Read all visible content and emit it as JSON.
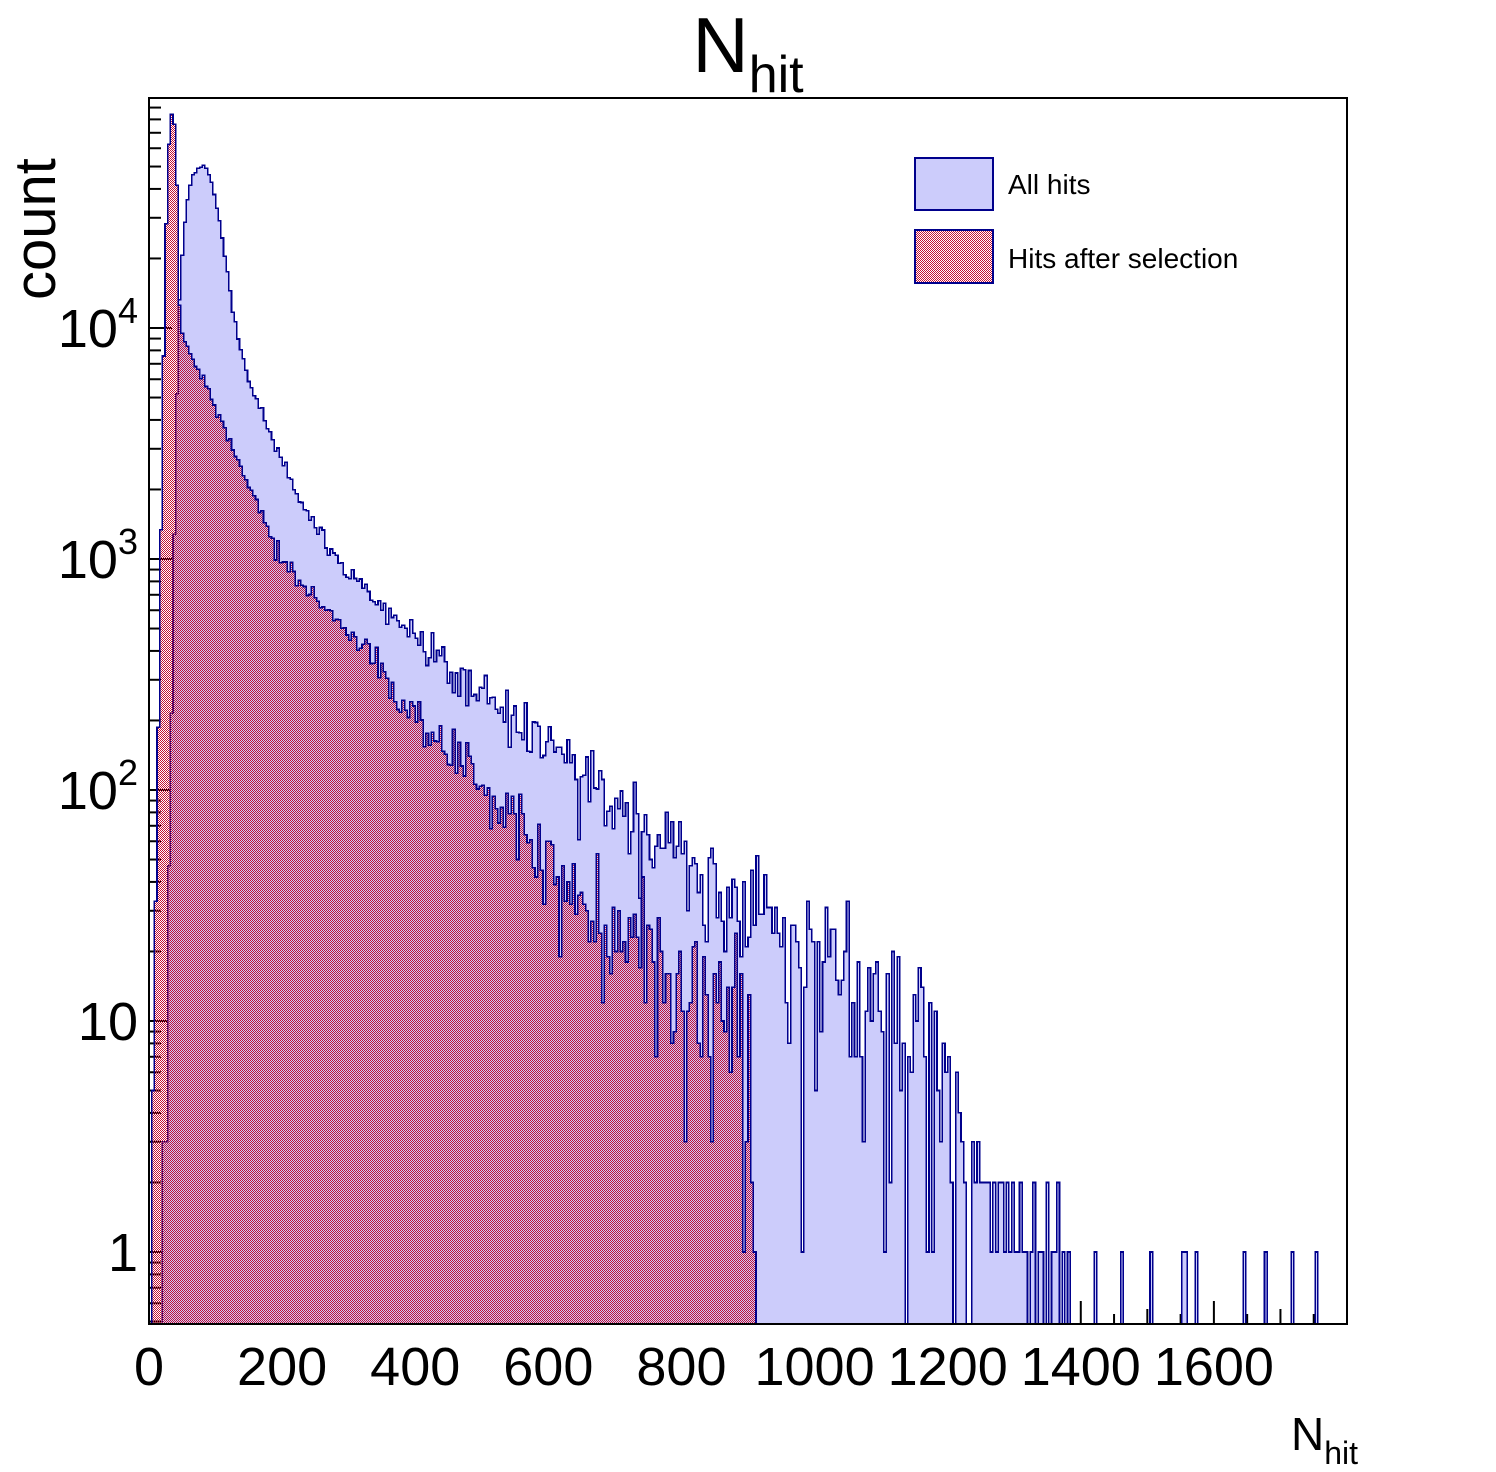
{
  "title": {
    "main": "N",
    "sub": "hit"
  },
  "axes": {
    "x": {
      "title_main": "N",
      "title_sub": "hit",
      "tick_values": [
        0,
        200,
        400,
        600,
        800,
        1000,
        1200,
        1400,
        1600
      ],
      "minor_step": 50,
      "medium_step": 100,
      "range": [
        0,
        1800
      ]
    },
    "y": {
      "title": "count",
      "scale": "log",
      "range": [
        0.487,
        100000
      ],
      "ticks": [
        {
          "v": 1,
          "label": "1"
        },
        {
          "v": 10,
          "label": "10"
        },
        {
          "v": 100,
          "label": "10^2"
        },
        {
          "v": 1000,
          "label": "10^3"
        },
        {
          "v": 10000,
          "label": "10^4"
        }
      ]
    }
  },
  "legend": {
    "items": [
      {
        "label": "All hits",
        "swatch": "solid"
      },
      {
        "label": "Hits after selection",
        "swatch": "hatch"
      }
    ]
  },
  "colors": {
    "fill_lavender": "#ccccfb",
    "outline_navy": "#00008c",
    "hatch_red": "#c41135",
    "frame_black": "#000000"
  },
  "chart_data": {
    "type": "bar",
    "title": "N_hit",
    "xlabel": "N_hit",
    "ylabel": "count",
    "x_range": [
      0,
      1800
    ],
    "y_range_log": [
      0.487,
      100000
    ],
    "bin_width": 4,
    "noise": 1.8,
    "noise_seed": 11,
    "series": [
      {
        "name": "All hits",
        "style": "solid",
        "cutoff": 1232,
        "anchors": [
          [
            22,
            1
          ],
          [
            25,
            4
          ],
          [
            28,
            15
          ],
          [
            31,
            60
          ],
          [
            34,
            250
          ],
          [
            37,
            900
          ],
          [
            40,
            2800
          ],
          [
            43,
            7000
          ],
          [
            46,
            13000
          ],
          [
            50,
            21000
          ],
          [
            54,
            29000
          ],
          [
            58,
            36000
          ],
          [
            62,
            41500
          ],
          [
            66,
            45500
          ],
          [
            70,
            47800
          ],
          [
            74,
            49500
          ],
          [
            78,
            50300
          ],
          [
            82,
            50500
          ],
          [
            86,
            49500
          ],
          [
            90,
            46500
          ],
          [
            95,
            41500
          ],
          [
            100,
            35500
          ],
          [
            105,
            29500
          ],
          [
            110,
            24500
          ],
          [
            115,
            19800
          ],
          [
            120,
            15800
          ],
          [
            125,
            12600
          ],
          [
            130,
            10300
          ],
          [
            135,
            8700
          ],
          [
            140,
            7600
          ],
          [
            145,
            6800
          ],
          [
            150,
            6100
          ],
          [
            160,
            5050
          ],
          [
            170,
            4250
          ],
          [
            180,
            3600
          ],
          [
            190,
            3070
          ],
          [
            200,
            2630
          ],
          [
            215,
            2130
          ],
          [
            230,
            1760
          ],
          [
            250,
            1380
          ],
          [
            270,
            1120
          ],
          [
            290,
            930
          ],
          [
            310,
            800
          ],
          [
            330,
            700
          ],
          [
            350,
            620
          ],
          [
            375,
            540
          ],
          [
            400,
            465
          ],
          [
            425,
            400
          ],
          [
            450,
            345
          ],
          [
            475,
            300
          ],
          [
            500,
            262
          ],
          [
            525,
            228
          ],
          [
            550,
            198
          ],
          [
            575,
            172
          ],
          [
            600,
            150
          ],
          [
            630,
            126
          ],
          [
            660,
            107
          ],
          [
            690,
            91
          ],
          [
            720,
            78
          ],
          [
            750,
            67
          ],
          [
            780,
            57
          ],
          [
            810,
            49
          ],
          [
            840,
            42
          ],
          [
            870,
            36
          ],
          [
            900,
            31
          ],
          [
            930,
            27
          ],
          [
            960,
            23
          ],
          [
            990,
            20
          ],
          [
            1020,
            17
          ],
          [
            1050,
            15
          ],
          [
            1080,
            13
          ],
          [
            1110,
            11
          ],
          [
            1140,
            10
          ],
          [
            1170,
            8
          ],
          [
            1200,
            6
          ],
          [
            1215,
            4
          ],
          [
            1228,
            2
          ]
        ],
        "tail_bins": [
          [
            1236,
            3
          ],
          [
            1240,
            2
          ],
          [
            1244,
            3
          ],
          [
            1248,
            2
          ],
          [
            1252,
            2
          ],
          [
            1256,
            1
          ],
          [
            1258,
            2
          ],
          [
            1262,
            2
          ],
          [
            1266,
            1
          ],
          [
            1270,
            2
          ],
          [
            1274,
            1
          ],
          [
            1277,
            2
          ],
          [
            1281,
            2
          ],
          [
            1285,
            1
          ],
          [
            1288,
            2
          ],
          [
            1292,
            1
          ],
          [
            1296,
            2
          ],
          [
            1300,
            1
          ],
          [
            1305,
            1
          ],
          [
            1310,
            2
          ],
          [
            1314,
            1
          ],
          [
            1318,
            1
          ],
          [
            1324,
            1
          ],
          [
            1330,
            2
          ],
          [
            1336,
            1
          ],
          [
            1342,
            1
          ],
          [
            1350,
            2
          ],
          [
            1356,
            1
          ],
          [
            1360,
            1
          ],
          [
            1367,
            2
          ],
          [
            1374,
            1
          ],
          [
            1380,
            1
          ],
          [
            1420,
            1
          ],
          [
            1460,
            1
          ],
          [
            1505,
            1
          ],
          [
            1553,
            1
          ],
          [
            1558,
            1
          ],
          [
            1572,
            1
          ],
          [
            1645,
            1
          ],
          [
            1676,
            1
          ],
          [
            1718,
            1
          ],
          [
            1754,
            1
          ]
        ]
      },
      {
        "name": "Hits after selection",
        "style": "hatch",
        "cutoff": 912,
        "anchors": [
          [
            3,
            1
          ],
          [
            6,
            4
          ],
          [
            9,
            15
          ],
          [
            12,
            60
          ],
          [
            15,
            250
          ],
          [
            18,
            1200
          ],
          [
            21,
            5000
          ],
          [
            24,
            16000
          ],
          [
            27,
            38000
          ],
          [
            30,
            62000
          ],
          [
            33,
            80000
          ],
          [
            35,
            88000
          ],
          [
            37,
            84000
          ],
          [
            39,
            70000
          ],
          [
            41,
            52000
          ],
          [
            43,
            33000
          ],
          [
            45,
            17000
          ],
          [
            47,
            9800
          ],
          [
            52,
            9000
          ],
          [
            60,
            8100
          ],
          [
            70,
            6900
          ],
          [
            80,
            6000
          ],
          [
            90,
            5200
          ],
          [
            100,
            4450
          ],
          [
            110,
            3800
          ],
          [
            120,
            3260
          ],
          [
            130,
            2800
          ],
          [
            140,
            2400
          ],
          [
            150,
            2060
          ],
          [
            160,
            1780
          ],
          [
            170,
            1530
          ],
          [
            180,
            1310
          ],
          [
            190,
            1130
          ],
          [
            200,
            980
          ],
          [
            215,
            880
          ],
          [
            230,
            790
          ],
          [
            245,
            705
          ],
          [
            260,
            630
          ],
          [
            275,
            565
          ],
          [
            290,
            505
          ],
          [
            305,
            455
          ],
          [
            320,
            405
          ],
          [
            335,
            365
          ],
          [
            350,
            325
          ],
          [
            370,
            278
          ],
          [
            390,
            238
          ],
          [
            410,
            203
          ],
          [
            430,
            174
          ],
          [
            450,
            149
          ],
          [
            470,
            128
          ],
          [
            490,
            111
          ],
          [
            510,
            97
          ],
          [
            530,
            84
          ],
          [
            550,
            72
          ],
          [
            570,
            62
          ],
          [
            590,
            54
          ],
          [
            610,
            47
          ],
          [
            630,
            40
          ],
          [
            650,
            35
          ],
          [
            670,
            30
          ],
          [
            690,
            26
          ],
          [
            710,
            23
          ],
          [
            730,
            20
          ],
          [
            750,
            17
          ],
          [
            770,
            15
          ],
          [
            790,
            14
          ],
          [
            810,
            13
          ],
          [
            830,
            12
          ],
          [
            850,
            11
          ],
          [
            870,
            11
          ],
          [
            890,
            12
          ],
          [
            903,
            10
          ],
          [
            907,
            4
          ],
          [
            910,
            2
          ]
        ],
        "tail_bins": []
      }
    ]
  }
}
